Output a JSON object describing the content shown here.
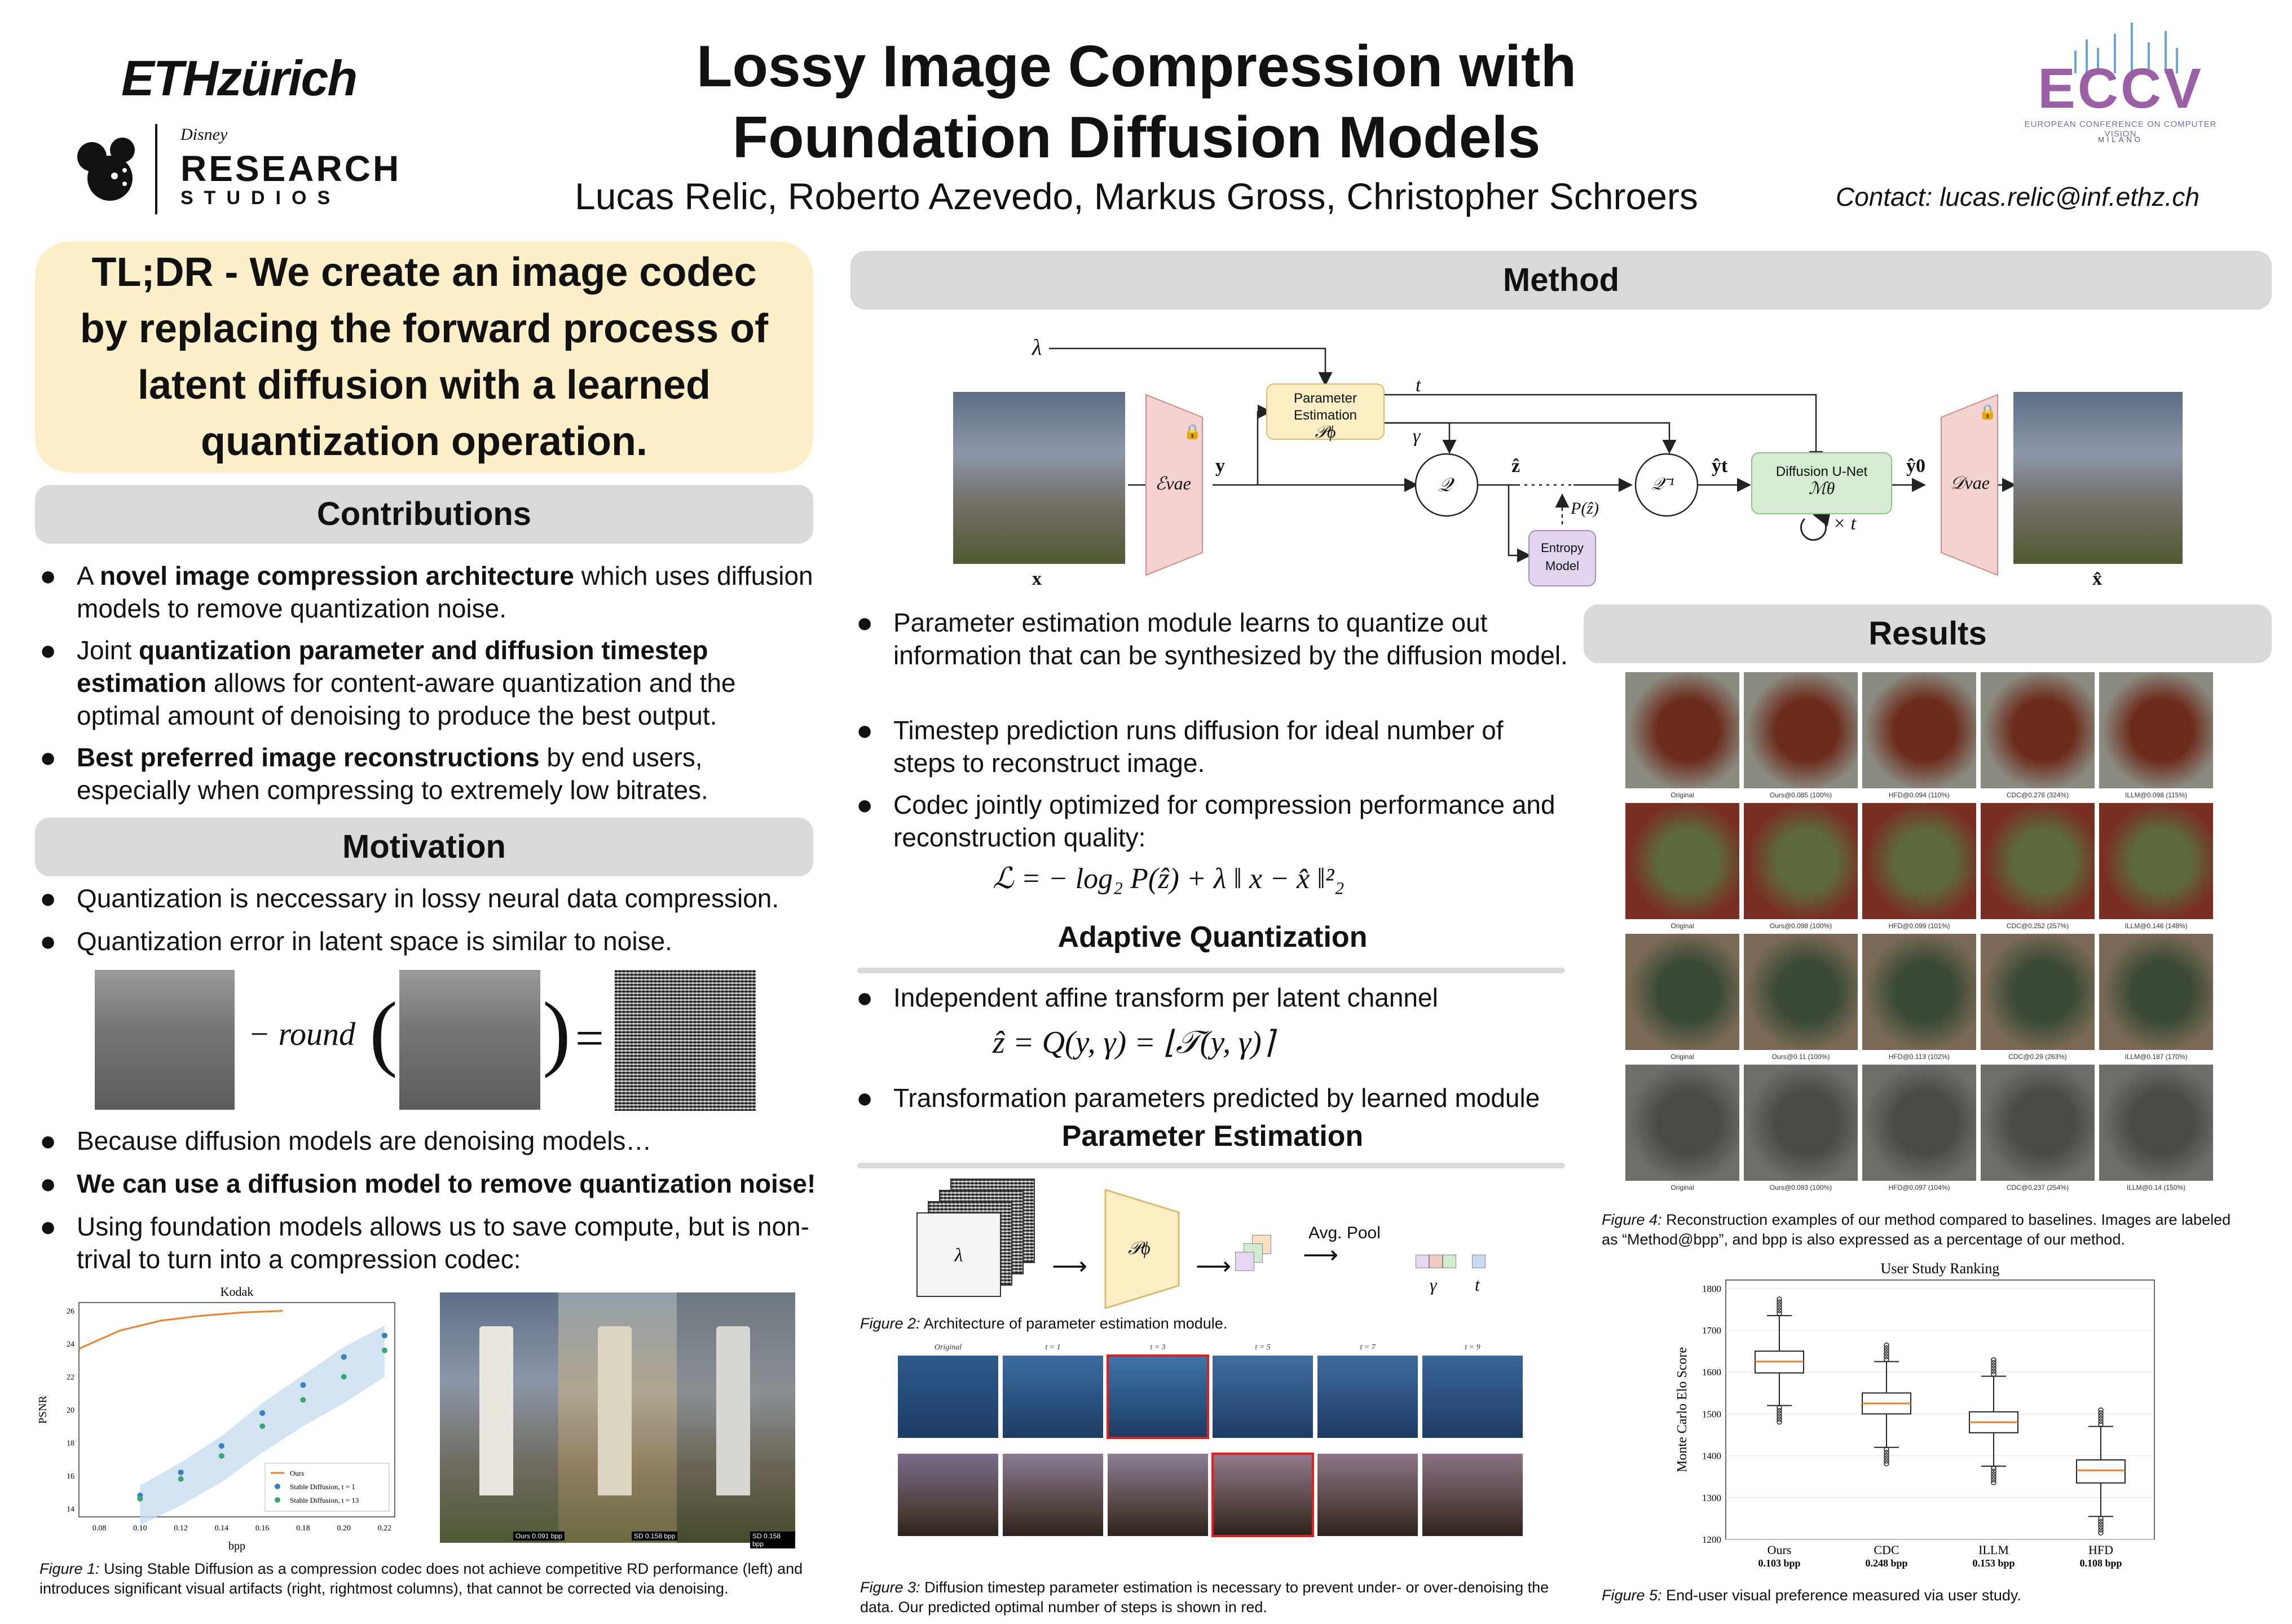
{
  "header": {
    "eth_logo": "ETHzürich",
    "disney_logo": "RESEARCH",
    "disney_sub": "STUDIOS",
    "disney_top": "Disney",
    "title_line1": "Lossy Image Compression with",
    "title_line2": "Foundation Diffusion Models",
    "authors": "Lucas Relic, Roberto Azevedo, Markus Gross, Christopher Schroers",
    "contact": "Contact: lucas.relic@inf.ethz.ch",
    "eccv_logo": "ECCV",
    "eccv_sub": "EUROPEAN CONFERENCE ON COMPUTER VISION",
    "eccv_city": "MILANO"
  },
  "tldr": {
    "text": "TL;DR - We create an image codec by replacing the forward process of latent diffusion with a learned quantization operation."
  },
  "contributions": {
    "heading": "Contributions",
    "items": [
      {
        "pre": "A ",
        "bold": "novel image compression architecture",
        "post": " which uses diffusion models to remove quantization noise."
      },
      {
        "pre": "Joint ",
        "bold": "quantization parameter and diffusion timestep estimation",
        "post": " allows for content-aware quantization and the optimal amount of denoising to produce the best output."
      },
      {
        "pre": "",
        "bold": "Best preferred image reconstructions",
        "post": " by end users, especially when compressing to extremely low bitrates."
      }
    ]
  },
  "motivation": {
    "heading": "Motivation",
    "items": [
      "Quantization is neccessary in lossy neural data compression.",
      "Quantization error in latent space is similar to noise.",
      "Because diffusion models are denoising models…",
      "We can use a diffusion model to remove quantization noise!",
      "Using foundation models allows us to save compute, but is non-trival to turn into a compression codec:"
    ],
    "equation_round": "− round",
    "kodak_chart": {
      "title": "Kodak",
      "xlabel": "bpp",
      "ylabel": "PSNR",
      "xticks": [
        "0.08",
        "0.10",
        "0.12",
        "0.14",
        "0.16",
        "0.18",
        "0.20",
        "0.22"
      ],
      "yticks": [
        "14",
        "16",
        "18",
        "20",
        "22",
        "24",
        "26"
      ],
      "legend": [
        "Ours",
        "Stable Diffusion, t = 1",
        "Stable Diffusion, t = 13"
      ]
    },
    "triptych_labels": [
      "Ours 0.091 bpp",
      "SD 0.158 bpp",
      "SD 0.158 bpp"
    ],
    "fig1_label": "Figure 1:",
    "fig1_caption": " Using Stable Diffusion as a compression codec does not achieve competitive RD performance (left) and introduces significant visual artifacts (right, rightmost columns), that cannot be corrected via denoising."
  },
  "method": {
    "heading": "Method",
    "diagram": {
      "lambda": "λ",
      "param_est": "Parameter Estimation",
      "p_phi": "𝒫ϕ",
      "t": "t",
      "gamma": "γ",
      "enc": "ℰvae",
      "y": "y",
      "Q": "𝒬",
      "zhat": "ẑ",
      "Qinv": "𝒬⁻¹",
      "yt": "ŷt",
      "unet": "Diffusion U-Net",
      "m_theta": "ℳθ",
      "times_t": "× t",
      "y0": "ŷ0",
      "dec": "𝒟vae",
      "pz": "P(ẑ)",
      "entropy": "Entropy Model",
      "x": "x",
      "xhat": "x̂"
    },
    "items": [
      "Parameter estimation module learns to quantize out information that can be synthesized by the diffusion model.",
      "Timestep prediction runs diffusion for ideal number of steps to reconstruct image.",
      "Codec jointly optimized for compression performance and reconstruction quality:"
    ],
    "loss_eq": "ℒ  = − log₂ P(ẑ) + λ ‖ x − x̂ ‖²₂",
    "aq_heading": "Adaptive Quantization",
    "aq_item1": "Independent affine transform per latent channel",
    "aq_eq": "ẑ = Q(y, γ) = ⌊𝒯(y, γ)⌉",
    "aq_item2": "Transformation parameters predicted by learned module",
    "pe_heading": "Parameter Estimation",
    "pe_lambda": "λ",
    "pe_pphi": "𝒫ϕ",
    "pe_avgpool": "Avg. Pool",
    "pe_gamma": "γ",
    "pe_t": "t",
    "fig2_label": "Figure 2:",
    "fig2_caption": " Architecture of parameter estimation module.",
    "fig3_col_labels": [
      "Original",
      "t = 1",
      "t = 3",
      "t = 5",
      "t = 7",
      "t = 9"
    ],
    "fig3_label": "Figure 3:",
    "fig3_caption": " Diffusion timestep parameter estimation is necessary to prevent under- or over-denoising the data. Our predicted optimal number of steps is shown in red."
  },
  "results": {
    "heading": "Results",
    "rows": [
      [
        "Original",
        "Ours@0.085 (100%)",
        "HFD@0.094 (110%)",
        "CDC@0.276 (324%)",
        "ILLM@0.098 (115%)"
      ],
      [
        "Original",
        "Ours@0.098 (100%)",
        "HFD@0.099 (101%)",
        "CDC@0.252 (257%)",
        "ILLM@0.146 (148%)"
      ],
      [
        "Original",
        "Ours@0.11 (100%)",
        "HFD@0.113 (102%)",
        "CDC@0.29 (263%)",
        "ILLM@0.187 (170%)"
      ],
      [
        "Original",
        "Ours@0.093 (100%)",
        "HFD@0.097 (104%)",
        "CDC@0.237 (254%)",
        "ILLM@0.14 (150%)"
      ]
    ],
    "fig4_label": "Figure 4:",
    "fig4_caption": " Reconstruction examples of our method compared to baselines. Images are labeled as “Method@bpp”, and bpp is also expressed as a percentage of our method.",
    "fig5_label": "Figure 5:",
    "fig5_caption": " End-user visual preference measured via user study."
  },
  "chart_data": [
    {
      "type": "line",
      "title": "Kodak",
      "xlabel": "bpp",
      "ylabel": "PSNR",
      "xlim": [
        0.07,
        0.225
      ],
      "ylim": [
        13.5,
        26.5
      ],
      "series": [
        {
          "name": "Ours",
          "x": [
            0.07,
            0.09,
            0.11,
            0.13,
            0.15,
            0.17
          ],
          "y": [
            23.7,
            24.8,
            25.4,
            25.7,
            25.9,
            26.0
          ]
        },
        {
          "name": "Stable Diffusion, t = 1",
          "x": [
            0.1,
            0.12,
            0.14,
            0.16,
            0.18,
            0.2,
            0.22
          ],
          "y": [
            14.8,
            16.2,
            17.8,
            19.8,
            21.5,
            23.2,
            24.5
          ]
        },
        {
          "name": "Stable Diffusion, t = 13",
          "x": [
            0.1,
            0.12,
            0.14,
            0.16,
            0.18,
            0.2,
            0.22
          ],
          "y": [
            14.6,
            15.8,
            17.2,
            19.0,
            20.6,
            22.0,
            23.6
          ]
        }
      ]
    },
    {
      "type": "box",
      "title": "User Study Ranking",
      "ylabel": "Monte Carlo Elo Score",
      "ylim": [
        1200,
        1820
      ],
      "yticks": [
        1200,
        1300,
        1400,
        1500,
        1600,
        1700,
        1800
      ],
      "categories": [
        "Ours",
        "CDC",
        "ILLM",
        "HFD"
      ],
      "sublabels": [
        "0.103 bpp",
        "0.248 bpp",
        "0.153 bpp",
        "0.108 bpp"
      ],
      "boxes": [
        {
          "q1": 1598,
          "median": 1625,
          "q3": 1650,
          "wlo": 1520,
          "whi": 1735
        },
        {
          "q1": 1500,
          "median": 1525,
          "q3": 1550,
          "wlo": 1420,
          "whi": 1625
        },
        {
          "q1": 1455,
          "median": 1480,
          "q3": 1505,
          "wlo": 1375,
          "whi": 1590
        },
        {
          "q1": 1335,
          "median": 1365,
          "q3": 1390,
          "wlo": 1255,
          "whi": 1470
        }
      ]
    }
  ],
  "colors": {
    "tldr_bg": "#fdf0c9",
    "section_bar": "#d9d9d9",
    "encoder_fill": "#f4d2cf",
    "unet_fill": "#d5ecd2",
    "pe_fill": "#fcefc6",
    "entropy_fill": "#e2d5ef",
    "ours_line": "#f07f2a",
    "sd_points": "#3a9ac1"
  }
}
